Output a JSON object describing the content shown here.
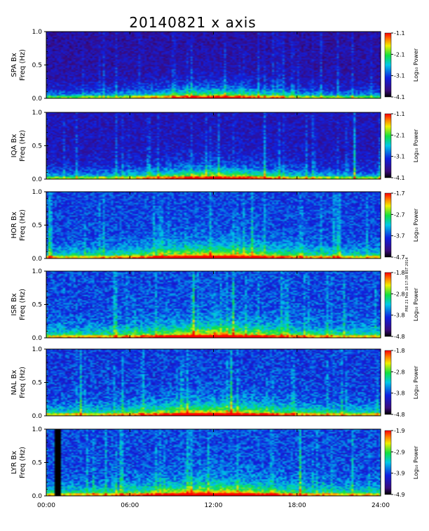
{
  "chart_data": {
    "type": "heatmap",
    "title": "20140821 x axis",
    "x_ticks": [
      "00:00",
      "06:00",
      "12:00",
      "18:00",
      "24:00"
    ],
    "xlim": [
      0,
      24
    ],
    "colorbar_label": "Log₁₀ Power",
    "side_note": "PRE 21 Feb 18 17:38 BST 2014",
    "panels": [
      {
        "station": "SPA Bx",
        "ylabel": "Freq (Hz)",
        "y_ticks": [
          "0.0",
          "0.5",
          "1.0"
        ],
        "ylim": [
          0,
          1
        ],
        "colorbar_ticks": [
          "-1.1",
          "-2.1",
          "-3.1",
          "-4.1"
        ],
        "clim": [
          -4.1,
          -1.1
        ]
      },
      {
        "station": "IQA Bx",
        "ylabel": "Freq (Hz)",
        "y_ticks": [
          "0.0",
          "0.5",
          "1.0"
        ],
        "ylim": [
          0,
          1
        ],
        "colorbar_ticks": [
          "-1.1",
          "-2.1",
          "-3.1",
          "-4.1"
        ],
        "clim": [
          -4.1,
          -1.1
        ]
      },
      {
        "station": "HOR Bx",
        "ylabel": "Freq (Hz)",
        "y_ticks": [
          "0.0",
          "0.5",
          "1.0"
        ],
        "ylim": [
          0,
          1
        ],
        "colorbar_ticks": [
          "-1.7",
          "-2.7",
          "-3.7",
          "-4.7"
        ],
        "clim": [
          -4.7,
          -1.7
        ]
      },
      {
        "station": "ISR Bx",
        "ylabel": "Freq (Hz)",
        "y_ticks": [
          "0.0",
          "0.5",
          "1.0"
        ],
        "ylim": [
          0,
          1
        ],
        "colorbar_ticks": [
          "-1.8",
          "-2.8",
          "-3.8",
          "-4.8"
        ],
        "clim": [
          -4.8,
          -1.8
        ]
      },
      {
        "station": "NAL Bx",
        "ylabel": "Freq (Hz)",
        "y_ticks": [
          "0.0",
          "0.5",
          "1.0"
        ],
        "ylim": [
          0,
          1
        ],
        "colorbar_ticks": [
          "-1.8",
          "-2.8",
          "-3.8",
          "-4.8"
        ],
        "clim": [
          -4.8,
          -1.8
        ]
      },
      {
        "station": "LYR Bx",
        "ylabel": "Freq (Hz)",
        "y_ticks": [
          "0.0",
          "0.5",
          "1.0"
        ],
        "ylim": [
          0,
          1
        ],
        "colorbar_ticks": [
          "-1.9",
          "-2.9",
          "-3.9",
          "-4.9"
        ],
        "clim": [
          -4.9,
          -1.9
        ]
      }
    ]
  }
}
